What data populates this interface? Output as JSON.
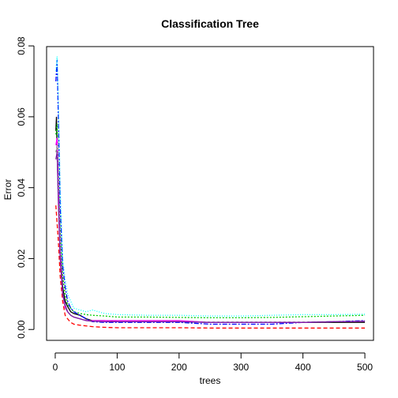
{
  "chart_data": {
    "type": "line",
    "title": "Classification Tree",
    "xlabel": "trees",
    "ylabel": "Error",
    "xlim": [
      -13.96,
      513.96
    ],
    "ylim": [
      -0.00307,
      0.0798
    ],
    "xticks": [
      0,
      100,
      200,
      300,
      400,
      500
    ],
    "yticks": [
      0.0,
      0.02,
      0.04,
      0.06,
      0.08
    ],
    "ytick_labels": [
      "0.00",
      "0.02",
      "0.04",
      "0.06",
      "0.08"
    ],
    "grid": false,
    "legend": "none",
    "series": [
      {
        "color": "#000000",
        "dash": "",
        "x": [
          1,
          2,
          3,
          5,
          8,
          12,
          16,
          20,
          25,
          30,
          40,
          50,
          60,
          80,
          100,
          130,
          160,
          200,
          250,
          300,
          350,
          400,
          450,
          500
        ],
        "values": [
          0.056,
          0.06,
          0.05,
          0.038,
          0.022,
          0.012,
          0.008,
          0.0065,
          0.005,
          0.0045,
          0.004,
          0.003,
          0.0025,
          0.0025,
          0.0022,
          0.0022,
          0.0022,
          0.0022,
          0.002,
          0.002,
          0.002,
          0.002,
          0.002,
          0.002
        ]
      },
      {
        "color": "#ff0000",
        "dash": "5,3",
        "x": [
          1,
          3,
          5,
          8,
          12,
          16,
          20,
          25,
          30,
          40,
          50,
          60,
          80,
          100,
          150,
          200,
          250,
          300,
          350,
          400,
          450,
          500
        ],
        "values": [
          0.035,
          0.03,
          0.025,
          0.015,
          0.008,
          0.004,
          0.003,
          0.002,
          0.0015,
          0.0012,
          0.001,
          0.0008,
          0.0006,
          0.0005,
          0.0005,
          0.0005,
          0.0004,
          0.0004,
          0.0004,
          0.0004,
          0.0004,
          0.0004
        ]
      },
      {
        "color": "#00cd00",
        "dash": "2,2",
        "x": [
          1,
          3,
          5,
          8,
          12,
          16,
          20,
          25,
          30,
          40,
          50,
          60,
          80,
          100,
          150,
          200,
          250,
          300,
          350,
          400,
          450,
          500
        ],
        "values": [
          0.055,
          0.058,
          0.045,
          0.028,
          0.015,
          0.01,
          0.007,
          0.006,
          0.005,
          0.0045,
          0.0042,
          0.004,
          0.0038,
          0.0035,
          0.0035,
          0.0034,
          0.0033,
          0.0033,
          0.0034,
          0.0036,
          0.0038,
          0.004
        ]
      },
      {
        "color": "#0000ff",
        "dash": "6,2,2,2",
        "x": [
          1,
          3,
          5,
          8,
          12,
          16,
          20,
          25,
          30,
          40,
          50,
          60,
          80,
          100,
          150,
          200,
          250,
          300,
          350,
          400,
          450,
          500
        ],
        "values": [
          0.07,
          0.076,
          0.06,
          0.035,
          0.018,
          0.012,
          0.008,
          0.006,
          0.005,
          0.004,
          0.003,
          0.0022,
          0.002,
          0.002,
          0.002,
          0.002,
          0.0015,
          0.0015,
          0.0015,
          0.002,
          0.0022,
          0.0025
        ]
      },
      {
        "color": "#00ffff",
        "dash": "1,2",
        "x": [
          1,
          3,
          5,
          8,
          12,
          16,
          20,
          25,
          30,
          40,
          50,
          60,
          80,
          100,
          150,
          200,
          250,
          300,
          350,
          400,
          450,
          500
        ],
        "values": [
          0.073,
          0.077,
          0.065,
          0.04,
          0.02,
          0.014,
          0.01,
          0.008,
          0.006,
          0.0055,
          0.005,
          0.0055,
          0.0045,
          0.0042,
          0.004,
          0.004,
          0.0038,
          0.0038,
          0.004,
          0.0042,
          0.0042,
          0.0043
        ]
      },
      {
        "color": "#ff00ff",
        "dash": "",
        "x": [
          1,
          3,
          5,
          8,
          12,
          16,
          20,
          25,
          30,
          40,
          50,
          60,
          80,
          100,
          150,
          200,
          250,
          300,
          350,
          400,
          450,
          500
        ],
        "values": [
          0.052,
          0.054,
          0.04,
          0.022,
          0.01,
          0.006,
          0.005,
          0.004,
          0.0035,
          0.003,
          0.0025,
          0.0025,
          0.0025,
          0.0025,
          0.0025,
          0.0025,
          0.002,
          0.002,
          0.002,
          0.002,
          0.0022,
          0.0023
        ]
      },
      {
        "color": "#9a9a9a",
        "dash": "3,3",
        "x": [
          1,
          3,
          5,
          8,
          12,
          16,
          20,
          25,
          30,
          40,
          50,
          60,
          80,
          100,
          150,
          200,
          250,
          300,
          350,
          400,
          450,
          500
        ],
        "values": [
          0.05,
          0.052,
          0.038,
          0.02,
          0.01,
          0.006,
          0.005,
          0.004,
          0.0035,
          0.003,
          0.0026,
          0.0024,
          0.0022,
          0.0022,
          0.0022,
          0.0022,
          0.0021,
          0.0021,
          0.0021,
          0.0021,
          0.0022,
          0.0023
        ]
      },
      {
        "color": "#7a1fa2",
        "dash": "",
        "x": [
          1,
          3,
          5,
          8,
          12,
          16,
          20,
          25,
          30,
          40,
          50,
          60,
          80,
          100,
          150,
          200,
          250,
          300,
          350,
          400,
          450,
          500
        ],
        "values": [
          0.048,
          0.05,
          0.036,
          0.02,
          0.01,
          0.007,
          0.005,
          0.004,
          0.0035,
          0.003,
          0.0025,
          0.0023,
          0.0022,
          0.0022,
          0.0022,
          0.0022,
          0.002,
          0.002,
          0.002,
          0.002,
          0.0022,
          0.0023
        ]
      }
    ]
  }
}
